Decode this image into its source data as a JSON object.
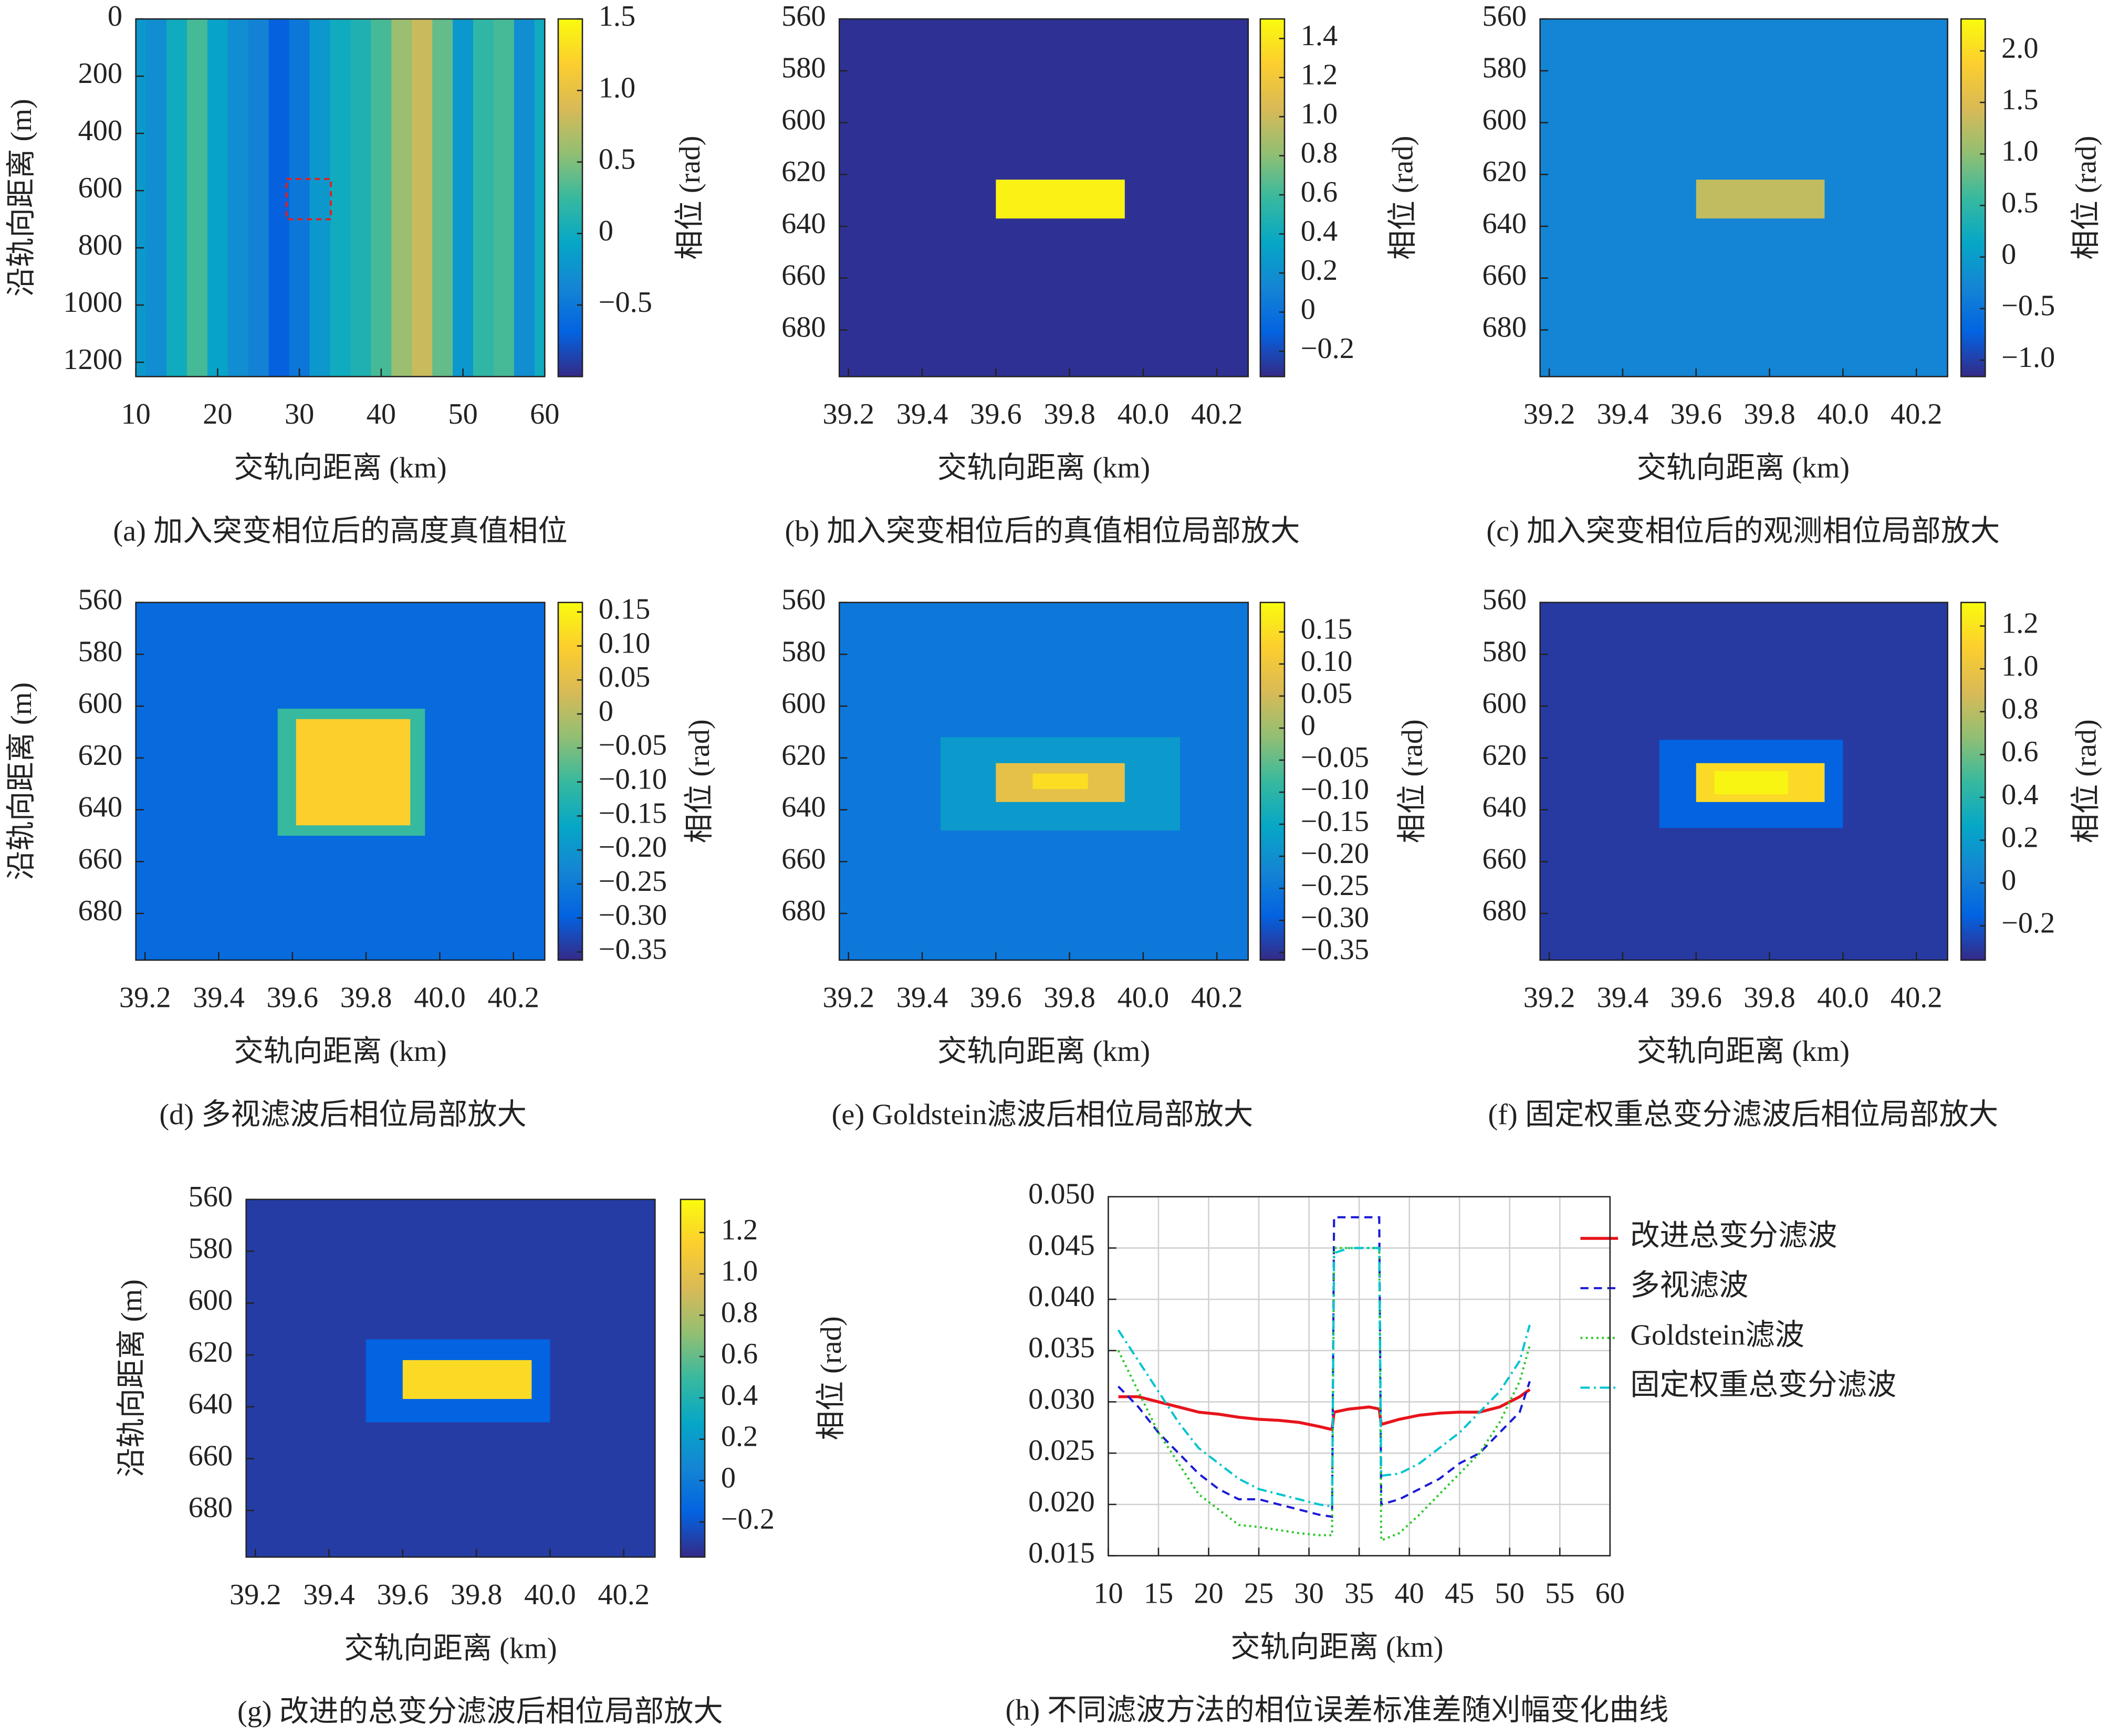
{
  "chart_data": [
    {
      "type": "heatmap",
      "title": "(a) 加入突变相位后的高度真值相位",
      "xlabel": "交轨向距离 (km)",
      "ylabel": "沿轨向距离 (m)",
      "colorbar_label": "相位 (rad)",
      "colormap": "parula",
      "xlim": [
        10,
        60
      ],
      "ylim": [
        0,
        1250
      ],
      "xticks": [
        10,
        20,
        30,
        40,
        50,
        60
      ],
      "yticks": [
        0,
        200,
        400,
        600,
        800,
        1000,
        1200
      ],
      "clim": [
        -1.0,
        1.5
      ],
      "cticks": [
        1.5,
        {
          "value": 1,
          "label": "1.0"
        },
        0.5,
        0,
        {
          "value": -0.5,
          "label": "−0.5"
        }
      ],
      "x": [
        10,
        12.5,
        15,
        17.5,
        20,
        22.5,
        25,
        27.5,
        30,
        32.5,
        35,
        37.5,
        40,
        42.5,
        45,
        47.5,
        50,
        52.5,
        55,
        57.5,
        60
      ],
      "values": [
        -0.2,
        -0.3,
        0,
        0.3,
        -0.1,
        -0.3,
        -0.4,
        -0.7,
        -0.5,
        -0.2,
        0,
        0.1,
        0.3,
        0.6,
        0.8,
        0.4,
        -0.2,
        0.2,
        0.3,
        -0.3,
        0
      ]
    },
    {
      "type": "heatmap",
      "title": "(b) 加入突变相位后的真值相位局部放大",
      "xlabel": "交轨向距离 (km)",
      "colorbar_label": "相位 (rad)",
      "colormap": "parula",
      "xlim": [
        39.175,
        40.285
      ],
      "ylim": [
        560,
        698
      ],
      "xticks": [
        39.2,
        39.4,
        39.6,
        39.8,
        {
          "value": 40,
          "label": "40.0"
        },
        40.2
      ],
      "yticks": [
        560,
        580,
        600,
        620,
        640,
        660,
        680
      ],
      "clim": [
        -0.33,
        1.5
      ],
      "cticks": [
        1.4,
        1.2,
        {
          "value": 1,
          "label": "1.0"
        },
        0.8,
        0.6,
        0.4,
        0.2,
        0,
        {
          "value": -0.2,
          "label": "−0.2"
        }
      ],
      "background": -0.3,
      "patches": [
        {
          "x": [
            39.6,
            39.95
          ],
          "y": [
            622,
            637
          ],
          "value": 1.45
        }
      ]
    },
    {
      "type": "heatmap",
      "title": "(c) 加入突变相位后的观测相位局部放大",
      "xlabel": "交轨向距离 (km)",
      "colorbar_label": "相位 (rad)",
      "colormap": "parula",
      "xlim": [
        39.175,
        40.285
      ],
      "ylim": [
        560,
        698
      ],
      "xticks": [
        39.2,
        39.4,
        39.6,
        39.8,
        {
          "value": 40,
          "label": "40.0"
        },
        40.2
      ],
      "yticks": [
        560,
        580,
        600,
        620,
        640,
        660,
        680
      ],
      "clim": [
        -1.16,
        2.31
      ],
      "cticks": [
        {
          "value": 2,
          "label": "2.0"
        },
        1.5,
        {
          "value": 1,
          "label": "1.0"
        },
        0.5,
        0,
        {
          "value": -0.5,
          "label": "−0.5"
        },
        {
          "value": -1,
          "label": "−1.0"
        }
      ],
      "background": -0.3,
      "patches": [
        {
          "x": [
            39.6,
            39.95
          ],
          "y": [
            622,
            637
          ],
          "value": 1.3
        }
      ]
    },
    {
      "type": "heatmap",
      "title": "(d) 多视滤波后相位局部放大",
      "xlabel": "交轨向距离 (km)",
      "ylabel": "沿轨向距离 (m)",
      "colorbar_label": "相位 (rad)",
      "colormap": "parula",
      "xlim": [
        39.175,
        40.285
      ],
      "ylim": [
        560,
        698
      ],
      "xticks": [
        39.2,
        39.4,
        39.6,
        39.8,
        {
          "value": 40,
          "label": "40.0"
        },
        40.2
      ],
      "yticks": [
        560,
        580,
        600,
        620,
        640,
        660,
        680
      ],
      "clim": [
        -0.362,
        0.164
      ],
      "cticks": [
        0.15,
        {
          "value": 0.1,
          "label": "0.10"
        },
        0.05,
        0,
        {
          "value": -0.05,
          "label": "−0.05"
        },
        {
          "value": -0.1,
          "label": "−0.10"
        },
        {
          "value": -0.15,
          "label": "−0.15"
        },
        {
          "value": -0.2,
          "label": "−0.20"
        },
        {
          "value": -0.25,
          "label": "−0.25"
        },
        {
          "value": -0.3,
          "label": "−0.30"
        },
        {
          "value": -0.35,
          "label": "−0.35"
        }
      ],
      "background": -0.28,
      "patches": [
        {
          "x": [
            39.56,
            39.96
          ],
          "y": [
            601,
            650
          ],
          "value": -0.1
        },
        {
          "x": [
            39.61,
            39.92
          ],
          "y": [
            605,
            646
          ],
          "value": 0.1
        }
      ]
    },
    {
      "type": "heatmap",
      "title": "(e) Goldstein滤波后相位局部放大",
      "xlabel": "交轨向距离 (km)",
      "colorbar_label": "相位 (rad)",
      "colormap": "parula",
      "xlim": [
        39.175,
        40.285
      ],
      "ylim": [
        560,
        698
      ],
      "xticks": [
        39.2,
        39.4,
        39.6,
        39.8,
        {
          "value": 40,
          "label": "40.0"
        },
        40.2
      ],
      "yticks": [
        560,
        580,
        600,
        620,
        640,
        660,
        680
      ],
      "clim": [
        -0.362,
        0.196
      ],
      "cticks": [
        0.15,
        {
          "value": 0.1,
          "label": "0.10"
        },
        0.05,
        0,
        {
          "value": -0.05,
          "label": "−0.05"
        },
        {
          "value": -0.1,
          "label": "−0.10"
        },
        {
          "value": -0.15,
          "label": "−0.15"
        },
        {
          "value": -0.2,
          "label": "−0.20"
        },
        {
          "value": -0.25,
          "label": "−0.25"
        },
        {
          "value": -0.3,
          "label": "−0.30"
        },
        {
          "value": -0.35,
          "label": "−0.35"
        }
      ],
      "background": -0.25,
      "patches": [
        {
          "x": [
            39.45,
            40.1
          ],
          "y": [
            612,
            648
          ],
          "value": -0.18
        },
        {
          "x": [
            39.6,
            39.95
          ],
          "y": [
            622,
            637
          ],
          "value": 0.08
        },
        {
          "x": [
            39.7,
            39.85
          ],
          "y": [
            626,
            632
          ],
          "value": 0.15
        }
      ]
    },
    {
      "type": "heatmap",
      "title": "(f) 固定权重总变分滤波后相位局部放大",
      "xlabel": "交轨向距离 (km)",
      "colorbar_label": "相位 (rad)",
      "colormap": "parula",
      "xlim": [
        39.175,
        40.285
      ],
      "ylim": [
        560,
        698
      ],
      "xticks": [
        39.2,
        39.4,
        39.6,
        39.8,
        {
          "value": 40,
          "label": "40.0"
        },
        40.2
      ],
      "yticks": [
        560,
        580,
        600,
        620,
        640,
        660,
        680
      ],
      "clim": [
        -0.36,
        1.31
      ],
      "cticks": [
        1.2,
        {
          "value": 1,
          "label": "1.0"
        },
        0.8,
        0.6,
        0.4,
        0.2,
        0,
        {
          "value": -0.2,
          "label": "−0.2"
        }
      ],
      "background": -0.3,
      "patches": [
        {
          "x": [
            39.5,
            40.0
          ],
          "y": [
            613,
            647
          ],
          "value": -0.15
        },
        {
          "x": [
            39.6,
            39.95
          ],
          "y": [
            622,
            637
          ],
          "value": 1.15
        },
        {
          "x": [
            39.65,
            39.85
          ],
          "y": [
            625,
            634
          ],
          "value": 1.28
        }
      ]
    },
    {
      "type": "heatmap",
      "title": "(g) 改进的总变分滤波后相位局部放大",
      "xlabel": "交轨向距离 (km)",
      "ylabel": "沿轨向距离 (m)",
      "colorbar_label": "相位 (rad)",
      "colormap": "parula",
      "xlim": [
        39.175,
        40.285
      ],
      "ylim": [
        560,
        698
      ],
      "xticks": [
        39.2,
        39.4,
        39.6,
        39.8,
        {
          "value": 40,
          "label": "40.0"
        },
        40.2
      ],
      "yticks": [
        560,
        580,
        600,
        620,
        640,
        660,
        680
      ],
      "clim": [
        -0.37,
        1.36
      ],
      "cticks": [
        1.2,
        {
          "value": 1,
          "label": "1.0"
        },
        0.8,
        0.6,
        0.4,
        0.2,
        0,
        {
          "value": -0.2,
          "label": "−0.2"
        }
      ],
      "background": -0.3,
      "patches": [
        {
          "x": [
            39.5,
            40.0
          ],
          "y": [
            614,
            646
          ],
          "value": -0.15
        },
        {
          "x": [
            39.6,
            39.95
          ],
          "y": [
            622,
            637
          ],
          "value": 1.2
        }
      ]
    },
    {
      "type": "line",
      "title": "(h) 不同滤波方法的相位误差标准差随刈幅变化曲线",
      "xlabel": "交轨向距离 (km)",
      "grid": true,
      "xlim": [
        10,
        60
      ],
      "ylim": [
        0.015,
        0.05
      ],
      "xticks": [
        10,
        15,
        20,
        25,
        30,
        35,
        40,
        45,
        50,
        55,
        60
      ],
      "yticks": [
        0.015,
        {
          "value": 0.02,
          "label": "0.020"
        },
        0.025,
        {
          "value": 0.03,
          "label": "0.030"
        },
        0.035,
        {
          "value": 0.04,
          "label": "0.040"
        },
        0.045,
        {
          "value": 0.05,
          "label": "0.050"
        }
      ],
      "x": [
        11,
        13,
        15,
        17,
        19,
        21,
        23,
        25,
        27,
        29,
        31,
        32.3,
        32.5,
        34,
        36,
        37,
        37.2,
        39,
        41,
        43,
        45,
        47,
        49,
        51,
        52
      ],
      "series": [
        {
          "name": "改进总变分滤波",
          "color": "#e8141c",
          "style": "solid",
          "values": [
            0.0305,
            0.0305,
            0.03,
            0.0295,
            0.029,
            0.0288,
            0.0285,
            0.0283,
            0.0282,
            0.028,
            0.0276,
            0.0273,
            0.029,
            0.0293,
            0.0295,
            0.0293,
            0.0278,
            0.0283,
            0.0287,
            0.0289,
            0.029,
            0.029,
            0.0295,
            0.0305,
            0.0312
          ]
        },
        {
          "name": "多视滤波",
          "color": "#1a1ad6",
          "style": "dashed",
          "values": [
            0.0315,
            0.0295,
            0.027,
            0.025,
            0.023,
            0.0215,
            0.0205,
            0.0205,
            0.02,
            0.0195,
            0.019,
            0.0188,
            0.048,
            0.048,
            0.048,
            0.048,
            0.02,
            0.0205,
            0.0215,
            0.0225,
            0.024,
            0.025,
            0.027,
            0.029,
            0.032
          ]
        },
        {
          "name": "Goldstein滤波",
          "color": "#2bc82b",
          "style": "dotted",
          "values": [
            0.035,
            0.031,
            0.027,
            0.024,
            0.021,
            0.0195,
            0.018,
            0.0178,
            0.0175,
            0.0172,
            0.017,
            0.017,
            0.045,
            0.045,
            0.045,
            0.045,
            0.0165,
            0.0172,
            0.019,
            0.021,
            0.023,
            0.025,
            0.028,
            0.032,
            0.0355
          ]
        },
        {
          "name": "固定权重总变分滤波",
          "color": "#00c4d0",
          "style": "dashdot",
          "values": [
            0.037,
            0.034,
            0.031,
            0.028,
            0.0255,
            0.024,
            0.0225,
            0.0215,
            0.021,
            0.0205,
            0.02,
            0.0198,
            0.0445,
            0.045,
            0.045,
            0.045,
            0.0228,
            0.023,
            0.024,
            0.0255,
            0.027,
            0.029,
            0.031,
            0.034,
            0.0375
          ]
        }
      ]
    }
  ]
}
